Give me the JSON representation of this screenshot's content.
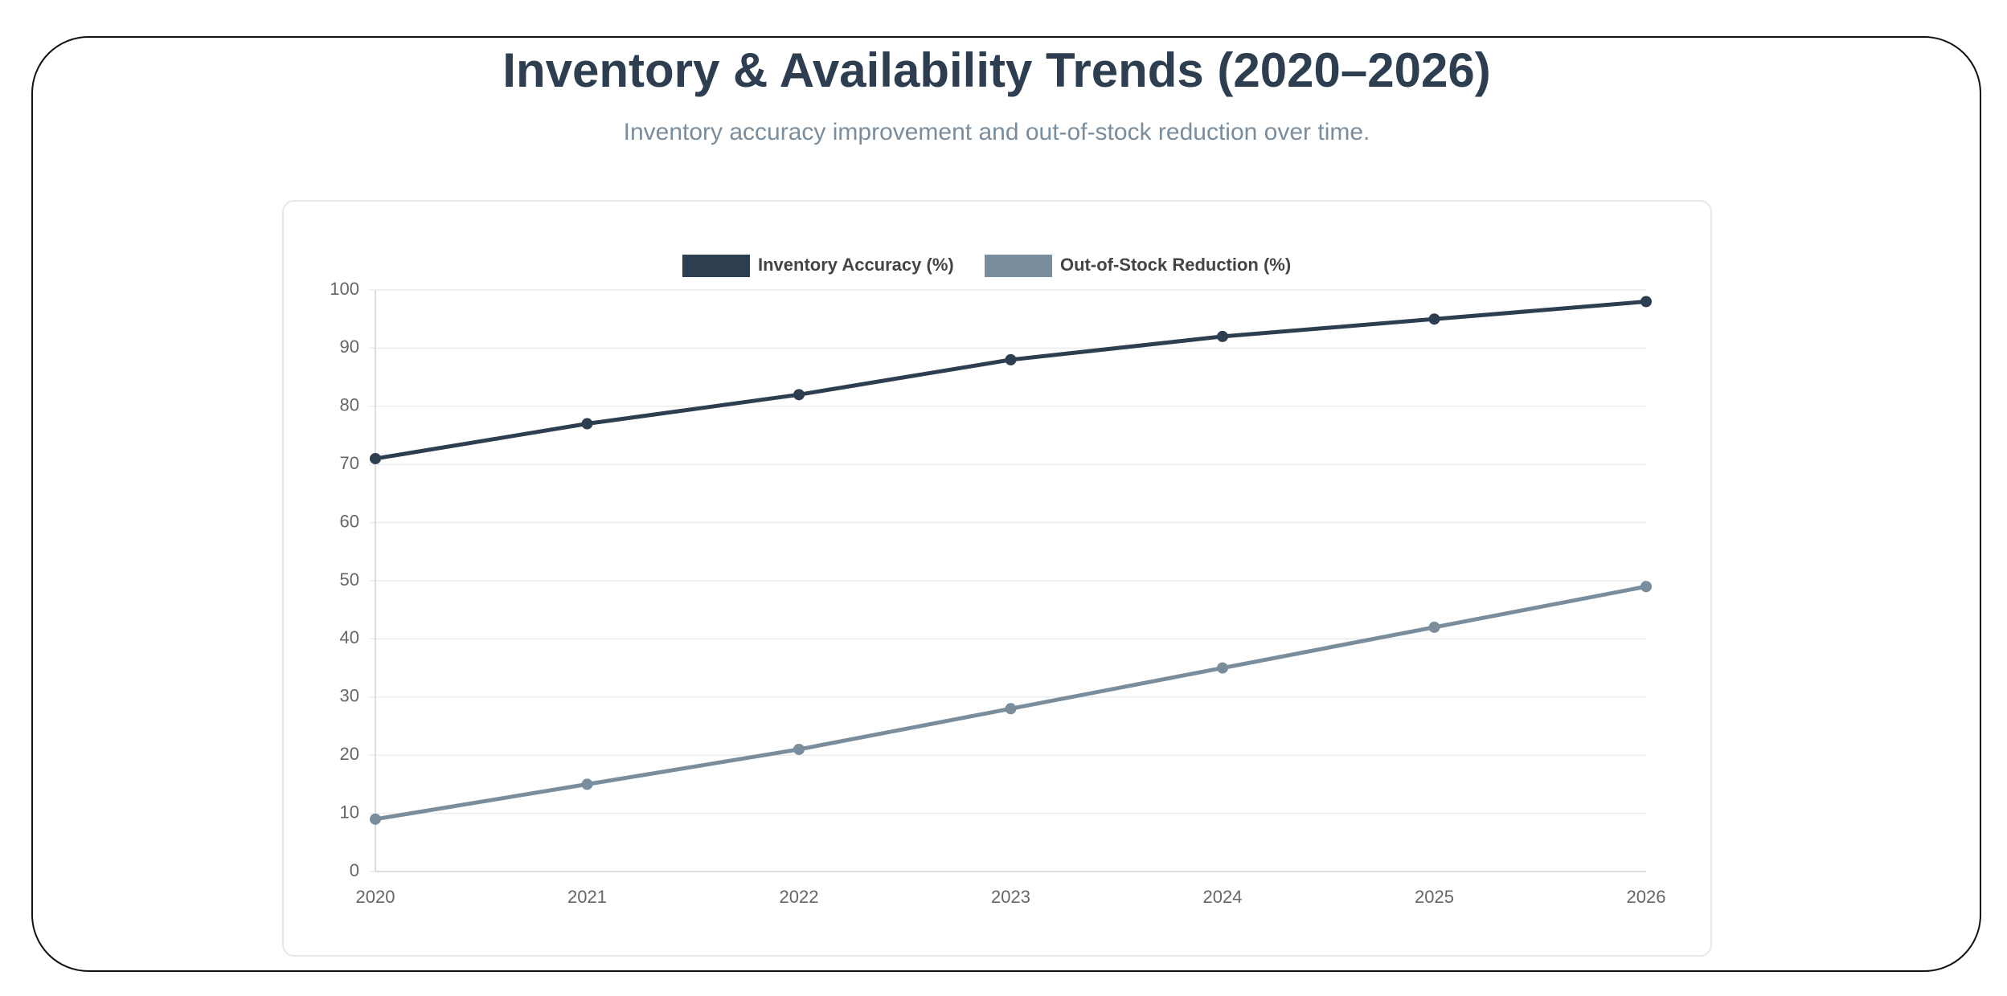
{
  "chart_data": {
    "type": "line",
    "title": "Inventory & Availability Trends (2020–2026)",
    "subtitle": "Inventory accuracy improvement and out-of-stock reduction over time.",
    "categories": [
      "2020",
      "2021",
      "2022",
      "2023",
      "2024",
      "2025",
      "2026"
    ],
    "series": [
      {
        "name": "Inventory Accuracy (%)",
        "color": "#2d3e50",
        "values": [
          71,
          77,
          82,
          88,
          92,
          95,
          98
        ]
      },
      {
        "name": "Out-of-Stock Reduction (%)",
        "color": "#7a8d9c",
        "values": [
          9,
          15,
          21,
          28,
          35,
          42,
          49
        ]
      }
    ],
    "ylim": [
      0,
      100
    ],
    "yticks": [
      0,
      10,
      20,
      30,
      40,
      50,
      60,
      70,
      80,
      90,
      100
    ],
    "grid": true,
    "legend": "top"
  }
}
